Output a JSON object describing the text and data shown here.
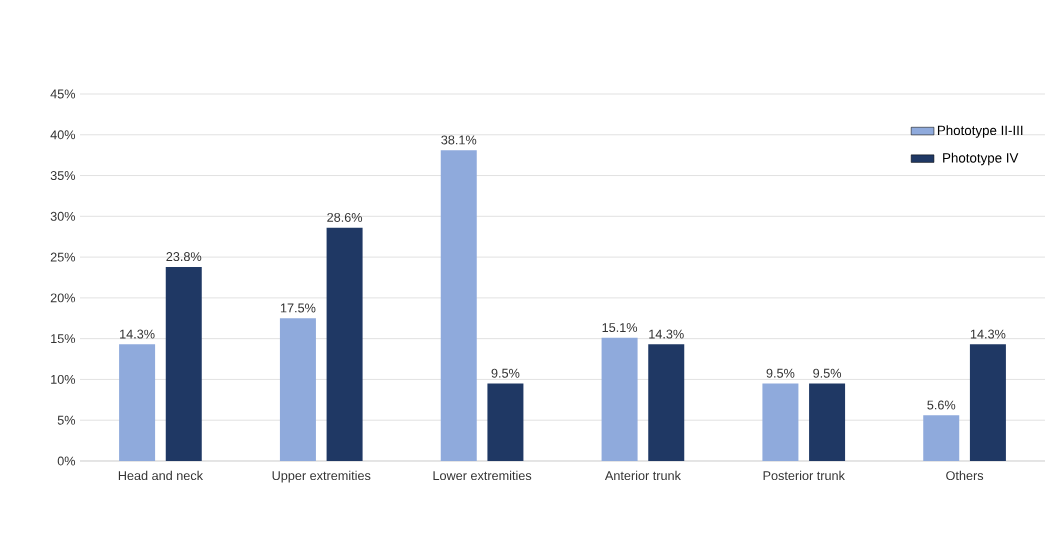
{
  "chart_data": {
    "type": "bar",
    "categories": [
      "Head and neck",
      "Upper extremities",
      "Lower extremities",
      "Anterior trunk",
      "Posterior trunk",
      "Others"
    ],
    "series": [
      {
        "name": "Phototype II-III",
        "color": "#8faadc",
        "values": [
          14.3,
          17.5,
          38.1,
          15.1,
          9.5,
          5.6
        ],
        "value_labels": [
          "14.3%",
          "17.5%",
          "38.1%",
          "15.1%",
          "9.5%",
          "5.6%"
        ]
      },
      {
        "name": "Phototype IV",
        "color": "#1f3864",
        "values": [
          23.8,
          28.6,
          9.5,
          14.3,
          9.5,
          14.3
        ],
        "value_labels": [
          "23.8%",
          "28.6%",
          "9.5%",
          "14.3%",
          "9.5%",
          "14.3%"
        ]
      }
    ],
    "ylim": [
      0,
      45
    ],
    "yticks": [
      {
        "value": 0,
        "label": "0%"
      },
      {
        "value": 5,
        "label": "5%"
      },
      {
        "value": 10,
        "label": "10%"
      },
      {
        "value": 15,
        "label": "15%"
      },
      {
        "value": 20,
        "label": "20%"
      },
      {
        "value": 25,
        "label": "25%"
      },
      {
        "value": 30,
        "label": "30%"
      },
      {
        "value": 35,
        "label": "35%"
      },
      {
        "value": 40,
        "label": "40%"
      },
      {
        "value": 45,
        "label": "45%"
      }
    ],
    "grid": "y",
    "legend": "top right"
  }
}
